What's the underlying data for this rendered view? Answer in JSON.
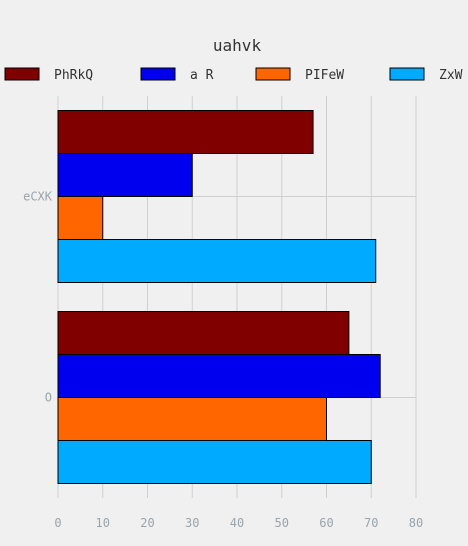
{
  "chart_data": {
    "type": "bar",
    "orientation": "horizontal",
    "title": "uahvk",
    "categories": [
      "eCXK",
      "O"
    ],
    "series": [
      {
        "name": "PhRkQ",
        "color": "#800000",
        "values": [
          57,
          65
        ]
      },
      {
        "name": "a R",
        "color": "#0000ee",
        "values": [
          30,
          72
        ]
      },
      {
        "name": "PIFeW",
        "color": "#ff6600",
        "values": [
          10,
          60
        ]
      },
      {
        "name": "ZxW",
        "color": "#00aaff",
        "values": [
          71,
          70
        ]
      }
    ],
    "xlim": [
      0,
      80
    ],
    "xticks": [
      0,
      10,
      20,
      30,
      40,
      50,
      60,
      70,
      80
    ],
    "grid": true,
    "legend_position": "top"
  }
}
